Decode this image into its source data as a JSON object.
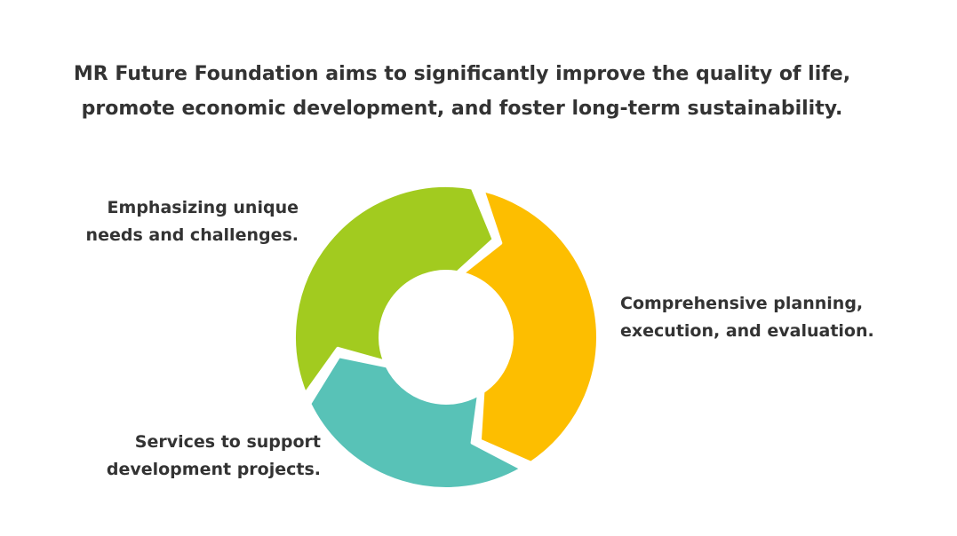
{
  "title": {
    "line1": "MR Future Foundation aims to significantly improve the quality of life,",
    "line2": "promote economic development, and foster long-term sustainability."
  },
  "segments": [
    {
      "id": "green",
      "color": "#A2CB1F",
      "label_lines": [
        "Emphasizing unique",
        "needs and challenges."
      ]
    },
    {
      "id": "yellow",
      "color": "#FDBE00",
      "label_lines": [
        "Comprehensive planning,",
        "execution, and evaluation."
      ]
    },
    {
      "id": "teal",
      "color": "#58C2B7",
      "label_lines": [
        "Services to support",
        "development projects."
      ]
    }
  ]
}
